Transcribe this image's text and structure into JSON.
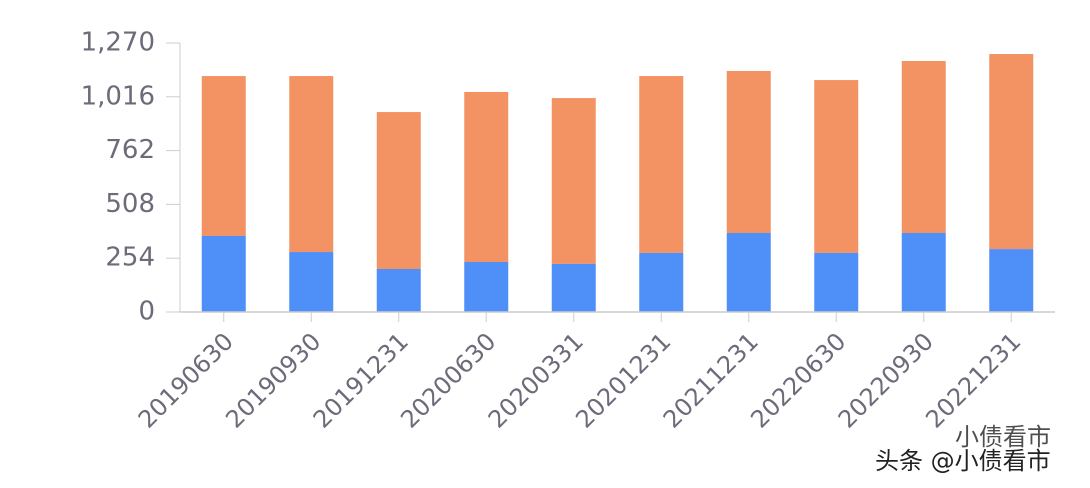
{
  "chart_data": {
    "type": "stacked_bar",
    "categories": [
      "20190630",
      "20190930",
      "20191231",
      "20200630",
      "20200331",
      "20201231",
      "20211231",
      "20220630",
      "20220930",
      "20221231"
    ],
    "series": [
      {
        "color": "#4e8ff8",
        "values": [
          359,
          283,
          203,
          236,
          227,
          279,
          373,
          279,
          373,
          297
        ]
      },
      {
        "color": "#f39364",
        "values": [
          755,
          831,
          741,
          803,
          783,
          835,
          765,
          816,
          812,
          921
        ]
      }
    ],
    "ylim": [
      0,
      1270
    ],
    "yticks": [
      0,
      254,
      508,
      762,
      {
        "value": 1016,
        "label": "1,016"
      },
      {
        "value": 1270,
        "label": "1,270"
      }
    ],
    "watermark": [
      "小债看市",
      "头条 @小债看市"
    ]
  }
}
